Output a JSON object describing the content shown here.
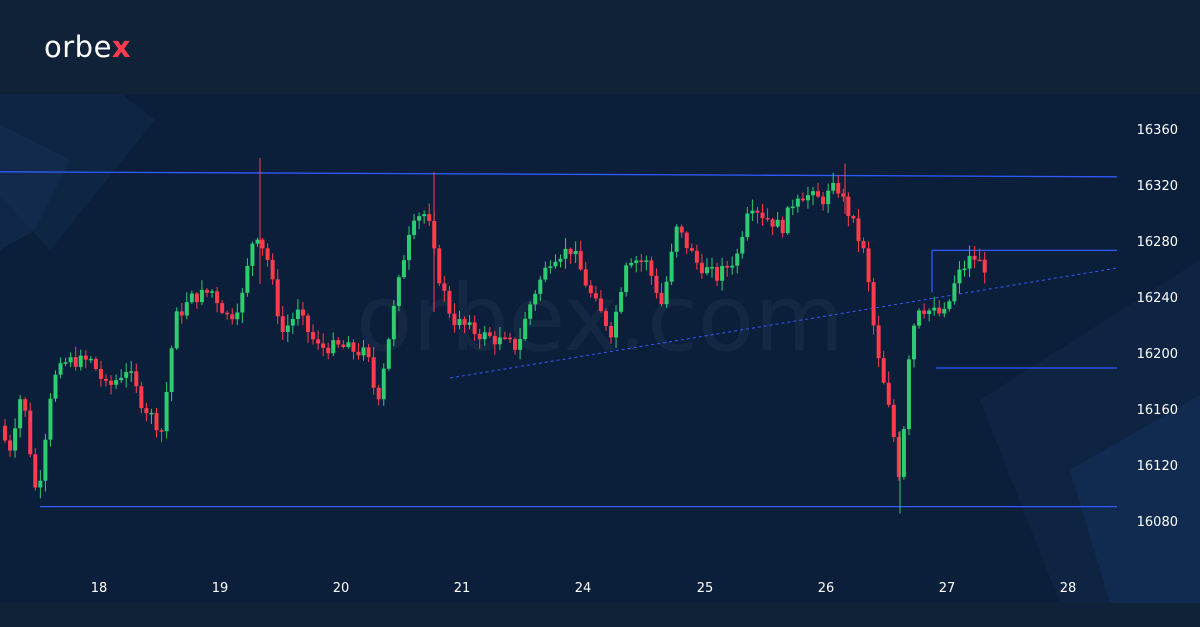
{
  "brand": {
    "name_main": "orbe",
    "name_x": "x",
    "watermark": "orbex.com",
    "accent": "#ff3b4e"
  },
  "colors": {
    "background": "#0b1f3b",
    "header": "#0f2238",
    "up_candle": "#2ecc71",
    "down_candle": "#ff3b4e",
    "level_line": "#2f5bff",
    "axis_text": "#ffffff"
  },
  "chart_data": {
    "type": "candlestick",
    "title": "",
    "xlabel": "",
    "ylabel": "",
    "ylim": [
      16050,
      16390
    ],
    "y_ticks": [
      16360,
      16320,
      16280,
      16240,
      16200,
      16160,
      16120,
      16080
    ],
    "x_ticks": [
      "18",
      "19",
      "20",
      "21",
      "24",
      "25",
      "26",
      "27",
      "28"
    ],
    "grid": false,
    "horizontal_levels": [
      {
        "name": "range-top",
        "value": 16328
      },
      {
        "name": "range-bottom",
        "value": 16091
      },
      {
        "name": "box-top",
        "value": 16274
      },
      {
        "name": "box-bottom",
        "value": 16190
      }
    ],
    "trendline": {
      "style": "dashed",
      "start": [
        "21",
        16185
      ],
      "end": [
        "28",
        16262
      ]
    },
    "candles_sample": [
      {
        "day": "18",
        "open": 16120,
        "close": 16200
      },
      {
        "day": "19",
        "open": 16250,
        "close": 16230
      },
      {
        "day": "20",
        "open": 16205,
        "close": 16205
      },
      {
        "day": "21",
        "open": 16225,
        "close": 16215
      },
      {
        "day": "24",
        "open": 16230,
        "close": 16255
      },
      {
        "day": "25",
        "open": 16260,
        "close": 16245
      },
      {
        "day": "26",
        "open": 16320,
        "close": 16300
      },
      {
        "day": "27",
        "open": 16230,
        "close": 16262
      }
    ]
  }
}
